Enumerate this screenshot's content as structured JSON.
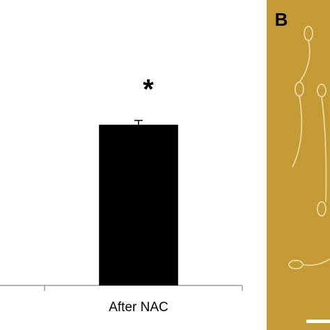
{
  "chart_data": {
    "type": "bar",
    "categories": [
      "After NAC"
    ],
    "values": [
      56.3
    ],
    "errors": [
      1.5
    ],
    "color": "#000000",
    "ylim": [
      0,
      100
    ],
    "annotation": "*"
  },
  "panel_label": "B"
}
